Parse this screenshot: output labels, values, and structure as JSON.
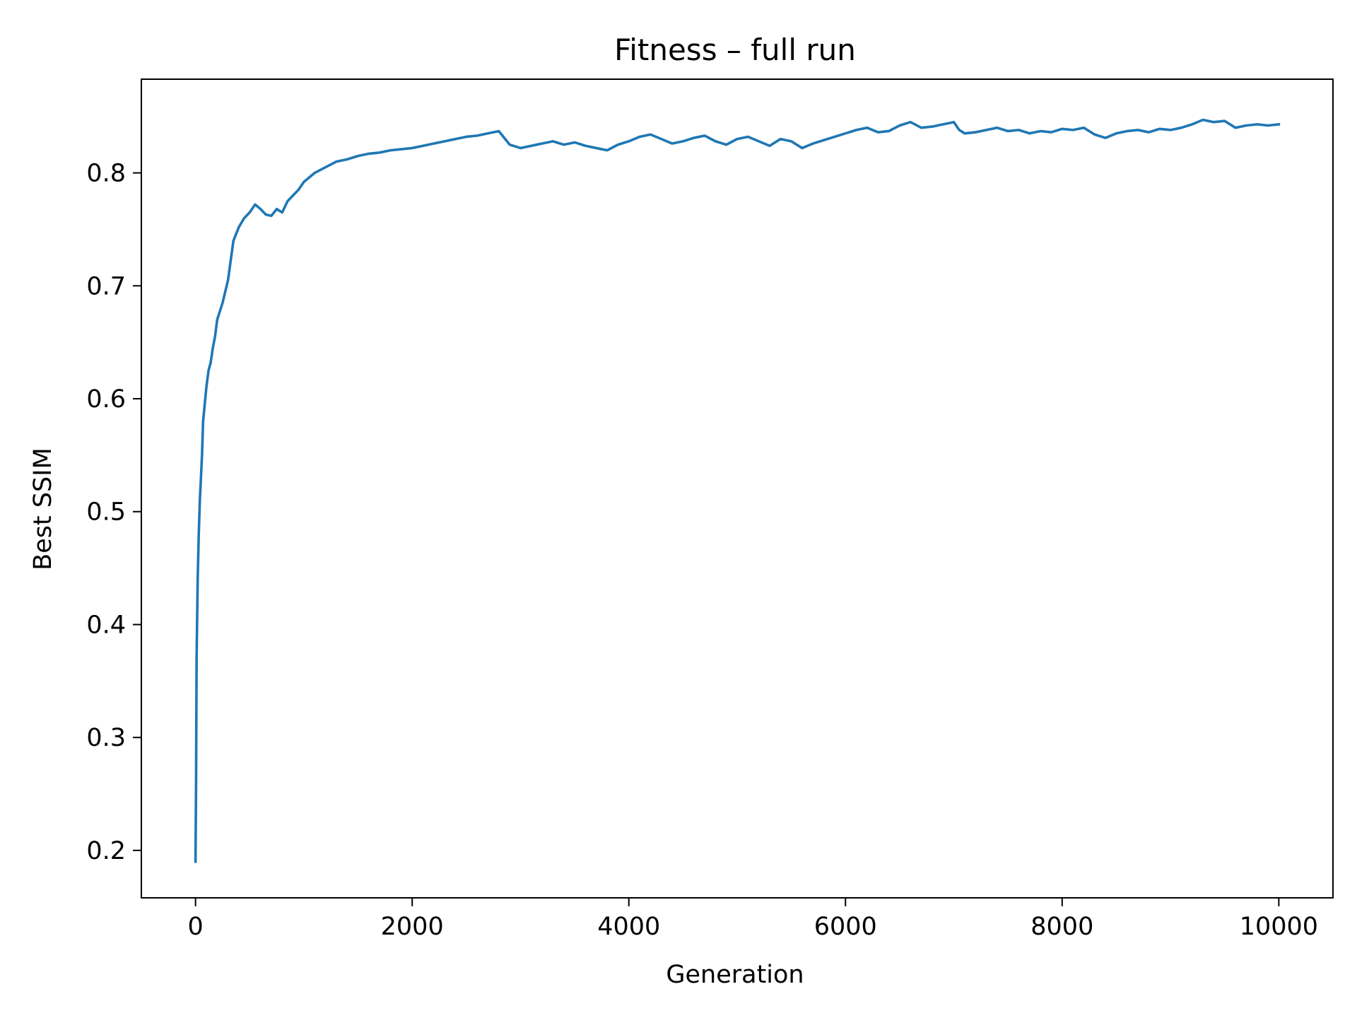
{
  "chart_data": {
    "type": "line",
    "title": "Fitness – full run",
    "xlabel": "Generation",
    "ylabel": "Best SSIM",
    "xlim": [
      -500,
      10500
    ],
    "ylim": [
      0.158,
      0.883
    ],
    "grid": false,
    "line_color": "#1f77b4",
    "x_ticks": [
      0,
      2000,
      4000,
      6000,
      8000,
      10000
    ],
    "x_tick_labels": [
      "0",
      "2000",
      "4000",
      "6000",
      "8000",
      "10000"
    ],
    "y_ticks": [
      0.2,
      0.3,
      0.4,
      0.5,
      0.6,
      0.7,
      0.8
    ],
    "y_tick_labels": [
      "0.2",
      "0.3",
      "0.4",
      "0.5",
      "0.6",
      "0.7",
      "0.8"
    ],
    "series": [
      {
        "x": [
          0,
          5,
          10,
          20,
          30,
          40,
          50,
          60,
          70,
          80,
          90,
          100,
          120,
          140,
          160,
          180,
          200,
          250,
          300,
          350,
          400,
          450,
          500,
          550,
          600,
          650,
          700,
          750,
          800,
          850,
          900,
          950,
          1000,
          1100,
          1200,
          1300,
          1400,
          1500,
          1600,
          1700,
          1800,
          1900,
          2000,
          2100,
          2200,
          2300,
          2400,
          2500,
          2600,
          2700,
          2800,
          2900,
          3000,
          3100,
          3200,
          3300,
          3400,
          3500,
          3600,
          3700,
          3800,
          3900,
          4000,
          4100,
          4200,
          4300,
          4400,
          4500,
          4600,
          4700,
          4800,
          4900,
          5000,
          5100,
          5200,
          5300,
          5400,
          5500,
          5600,
          5700,
          5800,
          5900,
          6000,
          6100,
          6200,
          6300,
          6400,
          6500,
          6600,
          6700,
          6800,
          6900,
          7000,
          7050,
          7100,
          7200,
          7300,
          7400,
          7500,
          7600,
          7700,
          7800,
          7900,
          8000,
          8100,
          8200,
          8300,
          8400,
          8500,
          8600,
          8700,
          8800,
          8900,
          9000,
          9100,
          9200,
          9300,
          9400,
          9500,
          9600,
          9700,
          9800,
          9900,
          10000
        ],
        "y": [
          0.19,
          0.26,
          0.37,
          0.44,
          0.48,
          0.51,
          0.53,
          0.55,
          0.58,
          0.59,
          0.6,
          0.61,
          0.625,
          0.632,
          0.645,
          0.655,
          0.67,
          0.685,
          0.705,
          0.74,
          0.752,
          0.76,
          0.765,
          0.772,
          0.768,
          0.763,
          0.762,
          0.768,
          0.765,
          0.775,
          0.78,
          0.785,
          0.792,
          0.8,
          0.805,
          0.81,
          0.812,
          0.815,
          0.817,
          0.818,
          0.82,
          0.821,
          0.822,
          0.824,
          0.826,
          0.828,
          0.83,
          0.832,
          0.833,
          0.835,
          0.837,
          0.825,
          0.822,
          0.824,
          0.826,
          0.828,
          0.825,
          0.827,
          0.824,
          0.822,
          0.82,
          0.825,
          0.828,
          0.832,
          0.834,
          0.83,
          0.826,
          0.828,
          0.831,
          0.833,
          0.828,
          0.825,
          0.83,
          0.832,
          0.828,
          0.824,
          0.83,
          0.828,
          0.822,
          0.826,
          0.829,
          0.832,
          0.835,
          0.838,
          0.84,
          0.836,
          0.837,
          0.842,
          0.845,
          0.84,
          0.841,
          0.843,
          0.845,
          0.838,
          0.835,
          0.836,
          0.838,
          0.84,
          0.837,
          0.838,
          0.835,
          0.837,
          0.836,
          0.839,
          0.838,
          0.84,
          0.834,
          0.831,
          0.835,
          0.837,
          0.838,
          0.836,
          0.839,
          0.838,
          0.84,
          0.843,
          0.847,
          0.845,
          0.846,
          0.84,
          0.842,
          0.843,
          0.842,
          0.843
        ]
      }
    ]
  }
}
